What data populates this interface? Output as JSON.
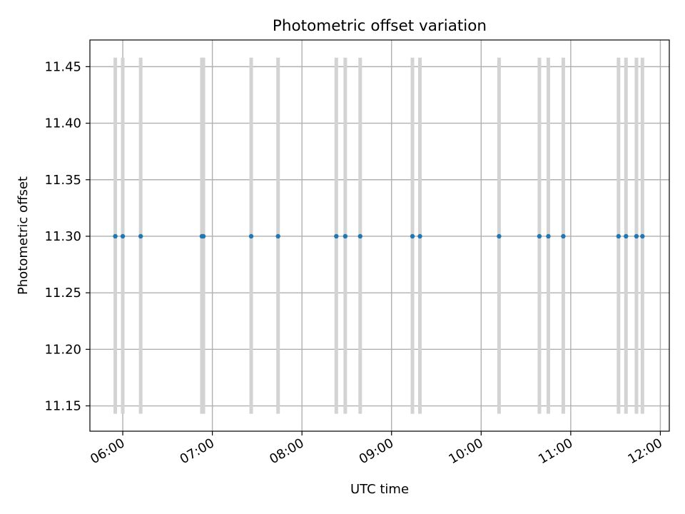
{
  "chart_data": {
    "type": "scatter",
    "title": "Photometric offset variation",
    "xlabel": "UTC time",
    "ylabel": "Photometric offset",
    "grid": true,
    "xlim": [
      "05:38",
      "12:06"
    ],
    "ylim": [
      11.1276,
      11.4736
    ],
    "xticks": [
      "06:00",
      "07:00",
      "08:00",
      "09:00",
      "10:00",
      "11:00",
      "12:00"
    ],
    "yticks": [
      "11.15",
      "11.20",
      "11.25",
      "11.30",
      "11.35",
      "11.40",
      "11.45"
    ],
    "error_range": [
      11.143,
      11.458
    ],
    "colors": {
      "points": "#1f77b4",
      "error_bars": "#d3d3d3",
      "grid": "#b0b0b0"
    },
    "points": [
      {
        "x": "05:55",
        "y": 11.3
      },
      {
        "x": "06:00",
        "y": 11.3
      },
      {
        "x": "06:12",
        "y": 11.3
      },
      {
        "x": "06:53",
        "y": 11.3
      },
      {
        "x": "06:54",
        "y": 11.3
      },
      {
        "x": "07:26",
        "y": 11.3
      },
      {
        "x": "07:44",
        "y": 11.3
      },
      {
        "x": "08:23",
        "y": 11.3
      },
      {
        "x": "08:29",
        "y": 11.3
      },
      {
        "x": "08:39",
        "y": 11.3
      },
      {
        "x": "09:14",
        "y": 11.3
      },
      {
        "x": "09:19",
        "y": 11.3
      },
      {
        "x": "10:12",
        "y": 11.3
      },
      {
        "x": "10:39",
        "y": 11.3
      },
      {
        "x": "10:45",
        "y": 11.3
      },
      {
        "x": "10:55",
        "y": 11.3
      },
      {
        "x": "11:32",
        "y": 11.3
      },
      {
        "x": "11:37",
        "y": 11.3
      },
      {
        "x": "11:44",
        "y": 11.3
      },
      {
        "x": "11:48",
        "y": 11.3
      }
    ]
  }
}
